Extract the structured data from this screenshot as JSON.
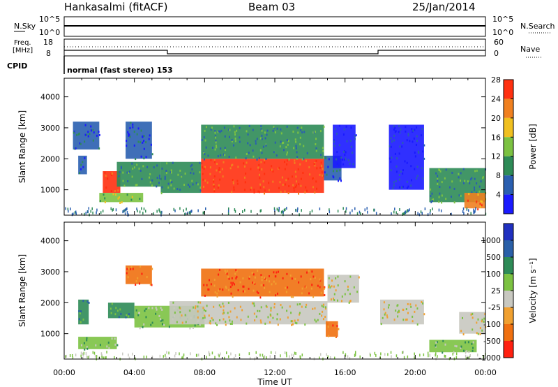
{
  "header": {
    "station": "Hankasalmi (fitACF)",
    "beam": "Beam 03",
    "date": "25/Jan/2014"
  },
  "strips": {
    "nsky_label": "N.Sky",
    "nsearch_label": "N.Search",
    "noise_ticks_left": [
      "10^5",
      "10^0"
    ],
    "noise_ticks_right": [
      "10^5",
      "10^0"
    ],
    "freq_label_top": "Freq.",
    "freq_label_unit": "[MHz]",
    "freq_ticks": [
      "18",
      "8"
    ],
    "nave_label": "Nave",
    "nave_ticks": [
      "60",
      "0"
    ],
    "cpid_label": "CPID",
    "cpid_value": "normal (fast stereo) 153"
  },
  "chart_data": [
    {
      "type": "heatmap",
      "title": "",
      "ylabel": "Slant Range [km]",
      "xlabel": "",
      "x_tick_labels": [
        "00:00",
        "04:00",
        "08:00",
        "12:00",
        "16:00",
        "20:00",
        "00:00"
      ],
      "x_hours": [
        0,
        4,
        8,
        12,
        16,
        20,
        24
      ],
      "y_ticks": [
        1000,
        2000,
        3000,
        4000
      ],
      "ylim": [
        180,
        4600
      ],
      "colorbar": {
        "label": "Power [dB]",
        "ticks": [
          "4",
          "8",
          "12",
          "16",
          "20",
          "24",
          "28"
        ],
        "colors": [
          "#1a1aff",
          "#2a5fb0",
          "#2e8b57",
          "#7cc242",
          "#f0c020",
          "#f08020",
          "#ff3010"
        ]
      },
      "regions": [
        {
          "t0": 0.8,
          "t1": 1.3,
          "r0": 1500,
          "r1": 2100,
          "value": 10
        },
        {
          "t0": 0.5,
          "t1": 2.0,
          "r0": 2300,
          "r1": 3200,
          "value": 8
        },
        {
          "t0": 2.2,
          "t1": 3.2,
          "r0": 900,
          "r1": 1600,
          "value": 28
        },
        {
          "t0": 2.0,
          "t1": 4.5,
          "r0": 600,
          "r1": 900,
          "value": 18
        },
        {
          "t0": 3.0,
          "t1": 5.5,
          "r0": 1100,
          "r1": 1900,
          "value": 12
        },
        {
          "t0": 3.5,
          "t1": 5.0,
          "r0": 2000,
          "r1": 3200,
          "value": 10
        },
        {
          "t0": 5.5,
          "t1": 7.8,
          "r0": 900,
          "r1": 1900,
          "value": 14
        },
        {
          "t0": 7.8,
          "t1": 14.8,
          "r0": 900,
          "r1": 2000,
          "value": 28
        },
        {
          "t0": 7.8,
          "t1": 14.8,
          "r0": 2000,
          "r1": 3100,
          "value": 14
        },
        {
          "t0": 14.8,
          "t1": 15.8,
          "r0": 1300,
          "r1": 2100,
          "value": 10
        },
        {
          "t0": 15.3,
          "t1": 16.6,
          "r0": 1700,
          "r1": 3100,
          "value": 6
        },
        {
          "t0": 18.5,
          "t1": 20.5,
          "r0": 1000,
          "r1": 3100,
          "value": 6
        },
        {
          "t0": 20.8,
          "t1": 24.0,
          "r0": 600,
          "r1": 1700,
          "value": 12
        },
        {
          "t0": 22.8,
          "t1": 24.0,
          "r0": 400,
          "r1": 900,
          "value": 26
        }
      ]
    },
    {
      "type": "heatmap",
      "title": "",
      "ylabel": "Slant Range [km]",
      "xlabel": "Time UT",
      "x_tick_labels": [
        "00:00",
        "04:00",
        "08:00",
        "12:00",
        "16:00",
        "20:00",
        "00:00"
      ],
      "x_hours": [
        0,
        4,
        8,
        12,
        16,
        20,
        24
      ],
      "y_ticks": [
        1000,
        2000,
        3000,
        4000
      ],
      "ylim": [
        180,
        4600
      ],
      "colorbar": {
        "label": "Velocity [m s⁻¹]",
        "ticks": [
          "1000",
          "500",
          "100",
          "25",
          "-25",
          "-100",
          "-500",
          "-1000"
        ],
        "colors": [
          "#2030c0",
          "#2a60a8",
          "#2e8b57",
          "#7cc242",
          "#c8c8c0",
          "#f0a030",
          "#f07010",
          "#ff2010"
        ]
      },
      "regions": [
        {
          "t0": 0.8,
          "t1": 1.4,
          "r0": 1300,
          "r1": 2100,
          "value": 100
        },
        {
          "t0": 0.8,
          "t1": 3.0,
          "r0": 500,
          "r1": 900,
          "value": 50
        },
        {
          "t0": 2.5,
          "t1": 4.0,
          "r0": 1500,
          "r1": 2000,
          "value": 300
        },
        {
          "t0": 3.5,
          "t1": 5.0,
          "r0": 2600,
          "r1": 3200,
          "value": -300
        },
        {
          "t0": 4.0,
          "t1": 8.0,
          "r0": 1200,
          "r1": 1900,
          "value": 40
        },
        {
          "t0": 6.0,
          "t1": 15.0,
          "r0": 1300,
          "r1": 2050,
          "value": 0
        },
        {
          "t0": 7.8,
          "t1": 14.8,
          "r0": 2200,
          "r1": 3100,
          "value": -300
        },
        {
          "t0": 14.9,
          "t1": 15.6,
          "r0": 900,
          "r1": 1400,
          "value": -400
        },
        {
          "t0": 15.0,
          "t1": 16.8,
          "r0": 2000,
          "r1": 2900,
          "value": 0
        },
        {
          "t0": 18.0,
          "t1": 20.5,
          "r0": 1300,
          "r1": 2100,
          "value": 0
        },
        {
          "t0": 20.8,
          "t1": 23.5,
          "r0": 400,
          "r1": 800,
          "value": 50
        },
        {
          "t0": 22.5,
          "t1": 24.0,
          "r0": 1000,
          "r1": 1700,
          "value": 0
        }
      ]
    }
  ]
}
